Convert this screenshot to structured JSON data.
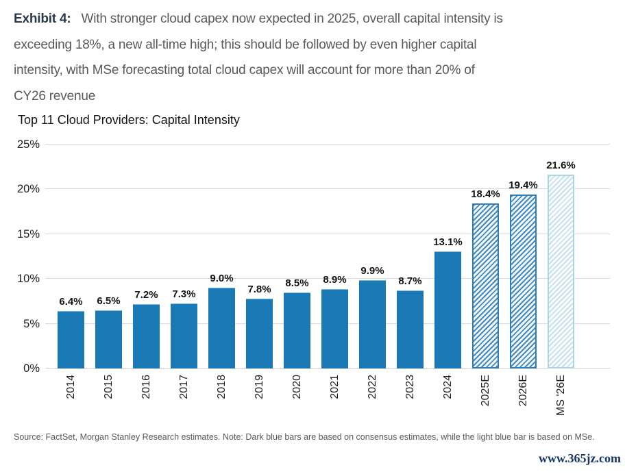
{
  "header": {
    "exhibit_label": "Exhibit 4:",
    "line1": "With stronger cloud capex now expected in 2025, overall capital intensity is",
    "line2": "exceeding 18%, a new all-time high; this should be followed by even higher capital",
    "line3": "intensity, with MSe forecasting total cloud capex will account for more than 20% of",
    "line4": "CY26 revenue"
  },
  "chart_data": {
    "type": "bar",
    "title": "Top 11 Cloud Providers: Capital Intensity",
    "categories": [
      "2014",
      "2015",
      "2016",
      "2017",
      "2018",
      "2019",
      "2020",
      "2021",
      "2022",
      "2023",
      "2024",
      "2025E",
      "2026E",
      "MS '26E"
    ],
    "values": [
      6.4,
      6.5,
      7.2,
      7.3,
      9.0,
      7.8,
      8.5,
      8.9,
      9.9,
      8.7,
      13.1,
      18.4,
      19.4,
      21.6
    ],
    "data_labels": [
      "6.4%",
      "6.5%",
      "7.2%",
      "7.3%",
      "9.0%",
      "7.8%",
      "8.5%",
      "8.9%",
      "9.9%",
      "8.7%",
      "13.1%",
      "18.4%",
      "19.4%",
      "21.6%"
    ],
    "bar_styles": [
      "solid",
      "solid",
      "solid",
      "solid",
      "solid",
      "solid",
      "solid",
      "solid",
      "solid",
      "solid",
      "solid",
      "hatch",
      "hatch",
      "hatch-light"
    ],
    "xlabel": "",
    "ylabel": "",
    "ylim": [
      0,
      25
    ],
    "ytick_labels": [
      "0%",
      "5%",
      "10%",
      "15%",
      "20%",
      "25%"
    ],
    "grid": true,
    "legend_position": "none",
    "colors": {
      "solid_bar": "#1b79b5",
      "hatch_stripe": "#4189c1",
      "hatch_border": "#2e7cb8",
      "light_stripe": "#c3e0ee",
      "light_border": "#abd4e5",
      "gridline": "#d9d9d9"
    }
  },
  "footer": {
    "source_note": "Source: FactSet, Morgan Stanley Research estimates. Note: Dark blue bars are based on consensus estimates, while the light blue bar is based on MSe.",
    "watermark": "www.365jz.com"
  }
}
